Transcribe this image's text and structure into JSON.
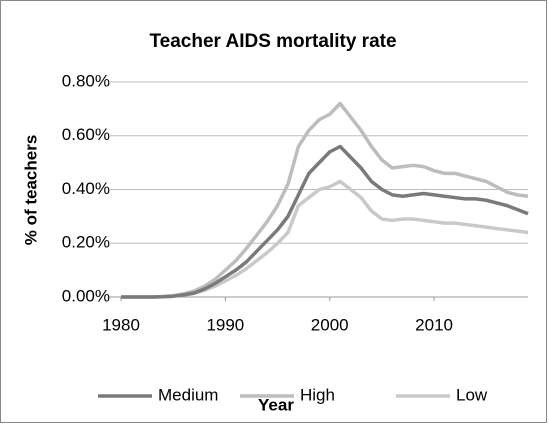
{
  "chart_data": {
    "type": "line",
    "title": "Teacher AIDS mortality rate",
    "x_label": "Year",
    "y_label": "% of teachers",
    "x": [
      1980,
      1981,
      1982,
      1983,
      1984,
      1985,
      1986,
      1987,
      1988,
      1989,
      1990,
      1991,
      1992,
      1993,
      1994,
      1995,
      1996,
      1997,
      1998,
      1999,
      2000,
      2001,
      2002,
      2003,
      2004,
      2005,
      2006,
      2007,
      2008,
      2009,
      2010,
      2011,
      2012,
      2013,
      2014,
      2015,
      2016,
      2017,
      2018,
      2019
    ],
    "series": [
      {
        "name": "Medium",
        "color": "#7a7a7a",
        "values": [
          0,
          0,
          0,
          0,
          0.001,
          0.003,
          0.008,
          0.015,
          0.03,
          0.05,
          0.075,
          0.1,
          0.13,
          0.17,
          0.21,
          0.25,
          0.3,
          0.38,
          0.46,
          0.5,
          0.54,
          0.56,
          0.52,
          0.48,
          0.43,
          0.4,
          0.38,
          0.375,
          0.38,
          0.385,
          0.38,
          0.375,
          0.37,
          0.365,
          0.365,
          0.36,
          0.35,
          0.34,
          0.325,
          0.31
        ]
      },
      {
        "name": "High",
        "color": "#bdbdbd",
        "values": [
          0,
          0,
          0,
          0,
          0.002,
          0.005,
          0.012,
          0.022,
          0.04,
          0.065,
          0.1,
          0.135,
          0.18,
          0.23,
          0.28,
          0.34,
          0.42,
          0.56,
          0.62,
          0.66,
          0.68,
          0.72,
          0.67,
          0.62,
          0.56,
          0.51,
          0.48,
          0.485,
          0.49,
          0.485,
          0.47,
          0.46,
          0.46,
          0.45,
          0.44,
          0.43,
          0.41,
          0.39,
          0.38,
          0.375
        ]
      },
      {
        "name": "Low",
        "color": "#c9c9c9",
        "values": [
          0,
          0,
          0,
          0,
          0.001,
          0.003,
          0.007,
          0.013,
          0.025,
          0.04,
          0.06,
          0.08,
          0.105,
          0.135,
          0.165,
          0.2,
          0.24,
          0.34,
          0.37,
          0.4,
          0.41,
          0.43,
          0.4,
          0.37,
          0.32,
          0.29,
          0.285,
          0.29,
          0.29,
          0.285,
          0.28,
          0.275,
          0.275,
          0.27,
          0.265,
          0.26,
          0.255,
          0.25,
          0.245,
          0.24
        ]
      }
    ],
    "xlim": [
      1980,
      2019
    ],
    "xticks": [
      1980,
      1990,
      2000,
      2010
    ],
    "ylim": [
      0,
      0.8
    ],
    "yticks": [
      {
        "value": 0,
        "label": "0.00%"
      },
      {
        "value": 0.2,
        "label": "0.20%"
      },
      {
        "value": 0.4,
        "label": "0.40%"
      },
      {
        "value": 0.6,
        "label": "0.60%"
      },
      {
        "value": 0.8,
        "label": "0.80%"
      }
    ],
    "grid": true,
    "legend": "bottom"
  }
}
